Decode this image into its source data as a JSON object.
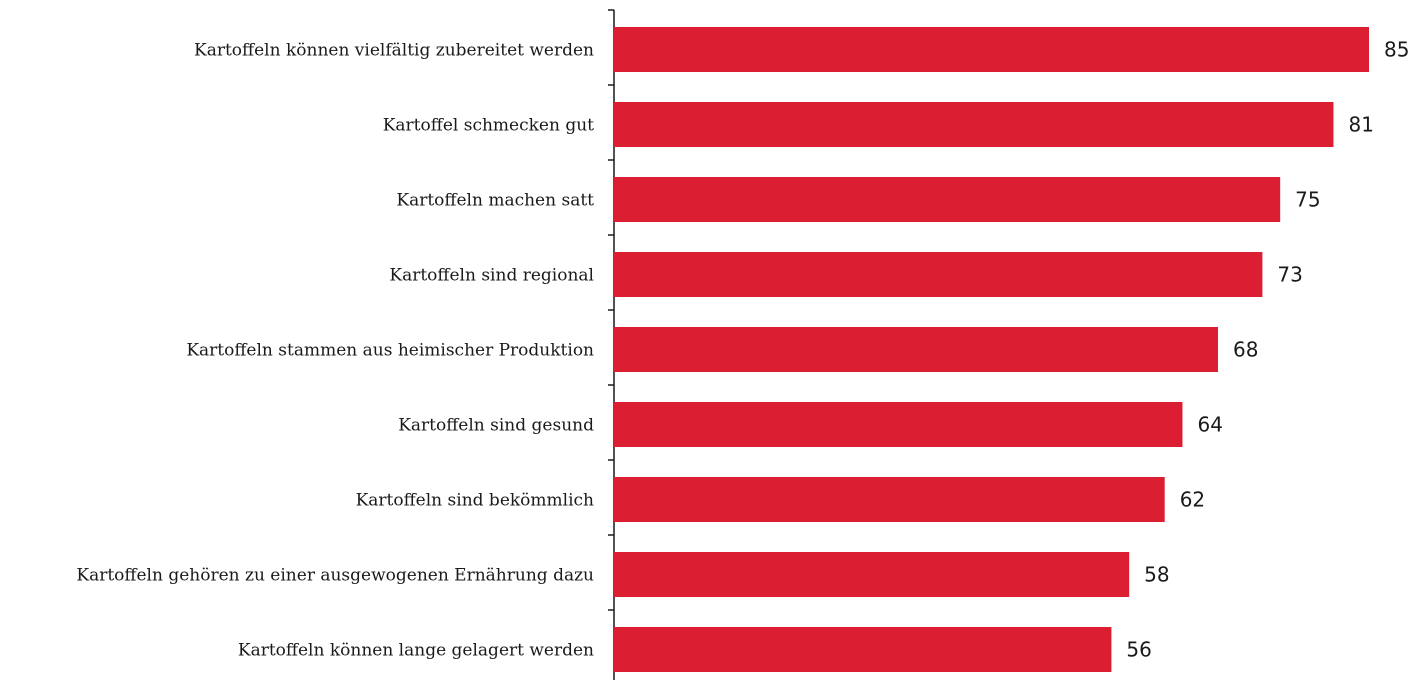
{
  "chart_data": {
    "type": "bar",
    "orientation": "horizontal",
    "categories": [
      "Kartoffeln können vielfältig zubereitet werden",
      "Kartoffel schmecken gut",
      "Kartoffeln machen satt",
      "Kartoffeln sind regional",
      "Kartoffeln stammen aus heimischer Produktion",
      "Kartoffeln sind gesund",
      "Kartoffeln sind bekömmlich",
      "Kartoffeln gehören zu einer ausgewogenen Ernährung dazu",
      "Kartoffeln können lange gelagert werden"
    ],
    "values": [
      85,
      81,
      75,
      73,
      68,
      64,
      62,
      58,
      56
    ],
    "xlim": [
      0,
      88
    ],
    "grid": false,
    "legend": "none",
    "colors": {
      "bar": "#dc1e32",
      "axis": "#1a1a1a"
    }
  }
}
